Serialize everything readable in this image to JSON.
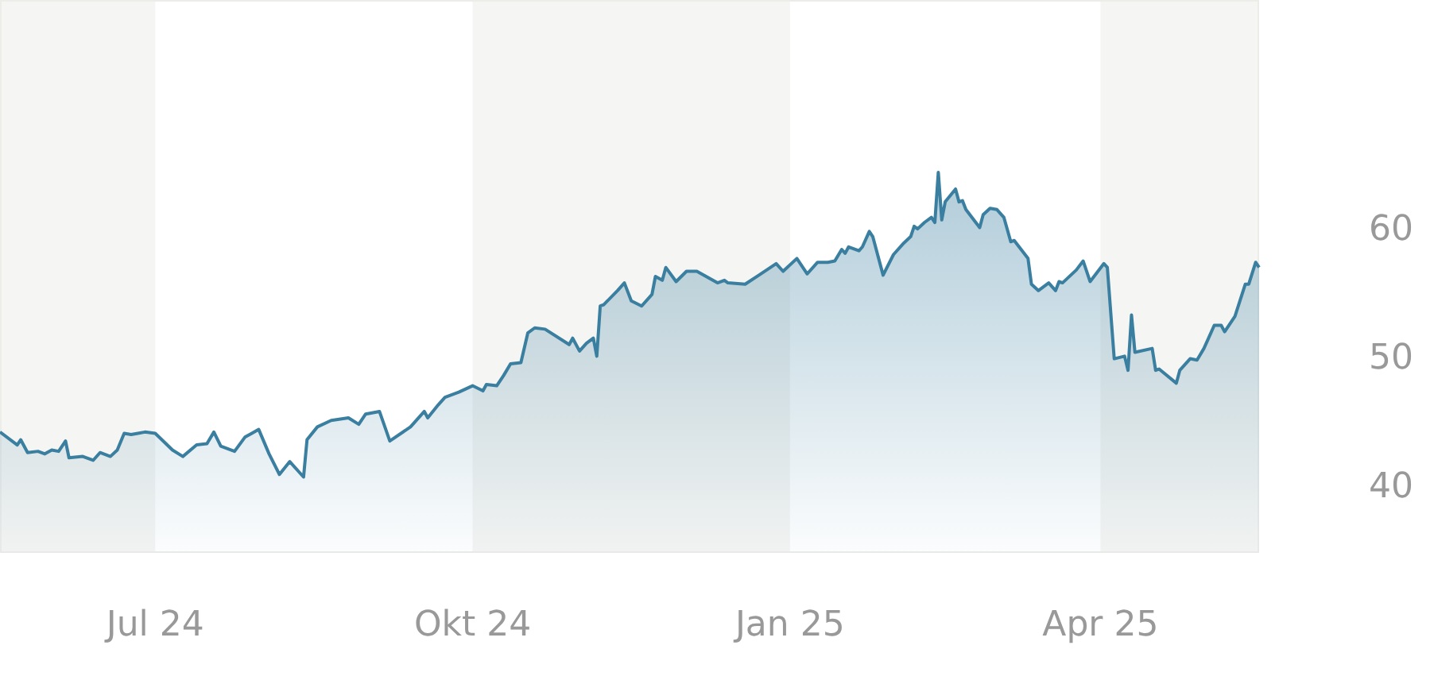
{
  "chart_data": {
    "type": "area",
    "x": [
      "2024-05-17",
      "2024-05-22",
      "2024-05-23",
      "2024-05-25",
      "2024-05-28",
      "2024-05-30",
      "2024-06-01",
      "2024-06-03",
      "2024-06-05",
      "2024-06-06",
      "2024-06-10",
      "2024-06-13",
      "2024-06-15",
      "2024-06-18",
      "2024-06-20",
      "2024-06-22",
      "2024-06-24",
      "2024-06-26",
      "2024-06-28",
      "2024-07-01",
      "2024-07-06",
      "2024-07-09",
      "2024-07-13",
      "2024-07-16",
      "2024-07-18",
      "2024-07-20",
      "2024-07-24",
      "2024-07-27",
      "2024-07-29",
      "2024-07-31",
      "2024-08-03",
      "2024-08-06",
      "2024-08-09",
      "2024-08-13",
      "2024-08-14",
      "2024-08-17",
      "2024-08-21",
      "2024-08-26",
      "2024-08-29",
      "2024-08-31",
      "2024-09-04",
      "2024-09-07",
      "2024-09-13",
      "2024-09-17",
      "2024-09-18",
      "2024-09-21",
      "2024-09-23",
      "2024-09-27",
      "2024-10-01",
      "2024-10-04",
      "2024-10-05",
      "2024-10-08",
      "2024-10-10",
      "2024-10-12",
      "2024-10-15",
      "2024-10-17",
      "2024-10-19",
      "2024-10-22",
      "2024-10-29",
      "2024-10-30",
      "2024-11-01",
      "2024-11-03",
      "2024-11-05",
      "2024-11-06",
      "2024-11-07",
      "2024-11-08",
      "2024-11-12",
      "2024-11-14",
      "2024-11-16",
      "2024-11-19",
      "2024-11-22",
      "2024-11-23",
      "2024-11-25",
      "2024-11-26",
      "2024-11-29",
      "2024-12-02",
      "2024-12-05",
      "2024-12-11",
      "2024-12-13",
      "2024-12-14",
      "2024-12-19",
      "2024-12-23",
      "2024-12-28",
      "2024-12-30",
      "2025-01-03",
      "2025-01-06",
      "2025-01-09",
      "2025-01-12",
      "2025-01-14",
      "2025-01-16",
      "2025-01-17",
      "2025-01-18",
      "2025-01-21",
      "2025-01-22",
      "2025-01-24",
      "2025-01-25",
      "2025-01-28",
      "2025-01-31",
      "2025-02-03",
      "2025-02-05",
      "2025-02-06",
      "2025-02-07",
      "2025-02-09",
      "2025-02-11",
      "2025-02-12",
      "2025-02-13",
      "2025-02-14",
      "2025-02-15",
      "2025-02-18",
      "2025-02-19",
      "2025-02-20",
      "2025-02-21",
      "2025-02-25",
      "2025-02-26",
      "2025-02-28",
      "2025-03-02",
      "2025-03-04",
      "2025-03-06",
      "2025-03-07",
      "2025-03-09",
      "2025-03-11",
      "2025-03-12",
      "2025-03-14",
      "2025-03-17",
      "2025-03-19",
      "2025-03-20",
      "2025-03-21",
      "2025-03-25",
      "2025-03-27",
      "2025-03-29",
      "2025-04-02",
      "2025-04-03",
      "2025-04-05",
      "2025-04-08",
      "2025-04-09",
      "2025-04-10",
      "2025-04-11",
      "2025-04-16",
      "2025-04-17",
      "2025-04-18",
      "2025-04-23",
      "2025-04-24",
      "2025-04-27",
      "2025-04-29",
      "2025-05-01",
      "2025-05-04",
      "2025-05-06",
      "2025-05-07",
      "2025-05-09",
      "2025-05-10",
      "2025-05-13",
      "2025-05-14",
      "2025-05-16",
      "2025-05-17"
    ],
    "series": [
      {
        "color": "#3a7fa0",
        "values": [
          44.2,
          43.2,
          43.6,
          42.6,
          42.7,
          42.5,
          42.8,
          42.7,
          43.5,
          42.2,
          42.3,
          42.0,
          42.6,
          42.3,
          42.8,
          44.1,
          44.0,
          44.1,
          44.2,
          44.1,
          42.8,
          42.3,
          43.2,
          43.3,
          44.2,
          43.1,
          42.7,
          43.8,
          44.1,
          44.4,
          42.5,
          40.9,
          41.9,
          40.7,
          43.6,
          44.6,
          45.1,
          45.3,
          44.8,
          45.6,
          45.8,
          43.5,
          44.6,
          45.8,
          45.3,
          46.3,
          46.9,
          47.3,
          47.8,
          47.4,
          47.9,
          47.8,
          48.6,
          49.5,
          49.6,
          51.9,
          52.3,
          52.2,
          51.0,
          51.5,
          50.5,
          51.1,
          51.5,
          50.1,
          54.0,
          54.1,
          55.2,
          55.8,
          54.4,
          54.0,
          54.9,
          56.3,
          56.0,
          57.0,
          55.9,
          56.7,
          56.7,
          55.8,
          56.0,
          55.8,
          55.7,
          56.4,
          57.3,
          56.7,
          57.7,
          56.5,
          57.4,
          57.4,
          57.5,
          58.4,
          58.1,
          58.6,
          58.3,
          58.6,
          59.8,
          59.4,
          56.4,
          58.0,
          58.9,
          59.4,
          60.2,
          60.0,
          60.5,
          60.9,
          60.5,
          64.4,
          60.7,
          62.1,
          63.1,
          62.1,
          62.2,
          61.5,
          60.1,
          61.1,
          61.6,
          61.5,
          60.9,
          59.0,
          59.1,
          58.4,
          57.7,
          55.7,
          55.2,
          55.8,
          55.2,
          55.9,
          55.8,
          56.8,
          57.5,
          55.9,
          57.3,
          57.0,
          49.9,
          50.1,
          49.0,
          53.3,
          50.4,
          50.7,
          49.0,
          49.1,
          48.0,
          49.0,
          49.9,
          49.8,
          50.7,
          52.5,
          52.5,
          52.0,
          52.8,
          53.2,
          55.7,
          55.7,
          57.4,
          57.0
        ]
      }
    ],
    "xlim": [
      "2024-05-17",
      "2025-05-17"
    ],
    "xticks": [
      {
        "value": "2024-07-01",
        "label": "Jul 24"
      },
      {
        "value": "2024-10-01",
        "label": "Okt 24"
      },
      {
        "value": "2025-01-01",
        "label": "Jan 25"
      },
      {
        "value": "2025-04-01",
        "label": "Apr 25"
      }
    ],
    "ylim": [
      34.8,
      77.8
    ],
    "yticks": [
      40,
      50,
      60
    ],
    "bands": [
      {
        "axis": "x",
        "from": "2024-05-17",
        "to": "2024-07-01",
        "color": "#f5f5f3"
      },
      {
        "axis": "x",
        "from": "2024-10-01",
        "to": "2025-01-01",
        "color": "#f5f5f3"
      },
      {
        "axis": "x",
        "from": "2025-04-01",
        "to": "2025-05-17",
        "color": "#f5f5f3"
      }
    ],
    "grid": false
  }
}
